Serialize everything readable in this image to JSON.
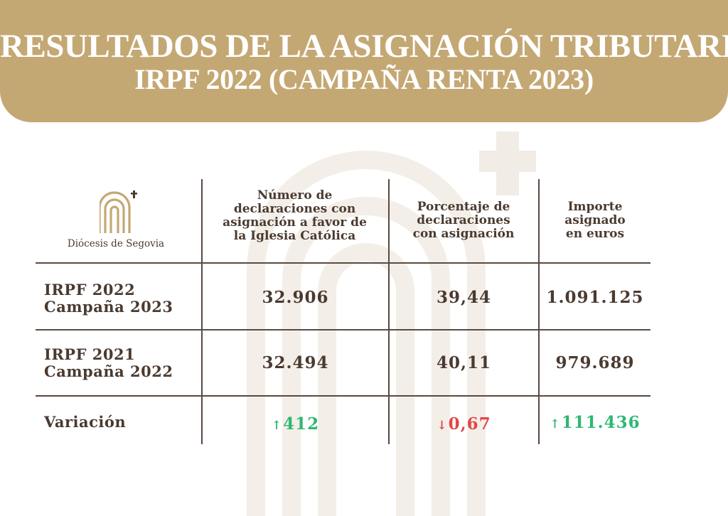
{
  "banner": {
    "title_line1": "RESULTADOS DE LA ASIGNACIÓN TRIBUTARIA",
    "title_line2": "IRPF 2022 (CAMPAÑA RENTA 2023)"
  },
  "logo": {
    "label": "Diócesis de Segovia"
  },
  "table": {
    "headers": [
      "Número de\ndeclaraciones con\nasignación a favor de\nla Iglesia Católica",
      "Porcentaje de\ndeclaraciones\ncon asignación",
      "Importe\nasignado\nen euros"
    ],
    "rows": [
      {
        "label": "IRPF 2022\nCampaña 2023",
        "values": [
          "32.906",
          "39,44",
          "1.091.125"
        ]
      },
      {
        "label": "IRPF 2021\nCampaña 2022",
        "values": [
          "32.494",
          "40,11",
          "979.689"
        ]
      }
    ],
    "variation": {
      "label": "Variación",
      "values": [
        {
          "arrow": "↑",
          "value": "412",
          "direction": "up"
        },
        {
          "arrow": "↓",
          "value": "0,67",
          "direction": "down"
        },
        {
          "arrow": "↑",
          "value": "111.436",
          "direction": "up"
        }
      ]
    }
  },
  "colors": {
    "banner": "#c4a874",
    "text": "#4a3a30",
    "increase": "#2eb872",
    "decrease": "#e04848"
  }
}
